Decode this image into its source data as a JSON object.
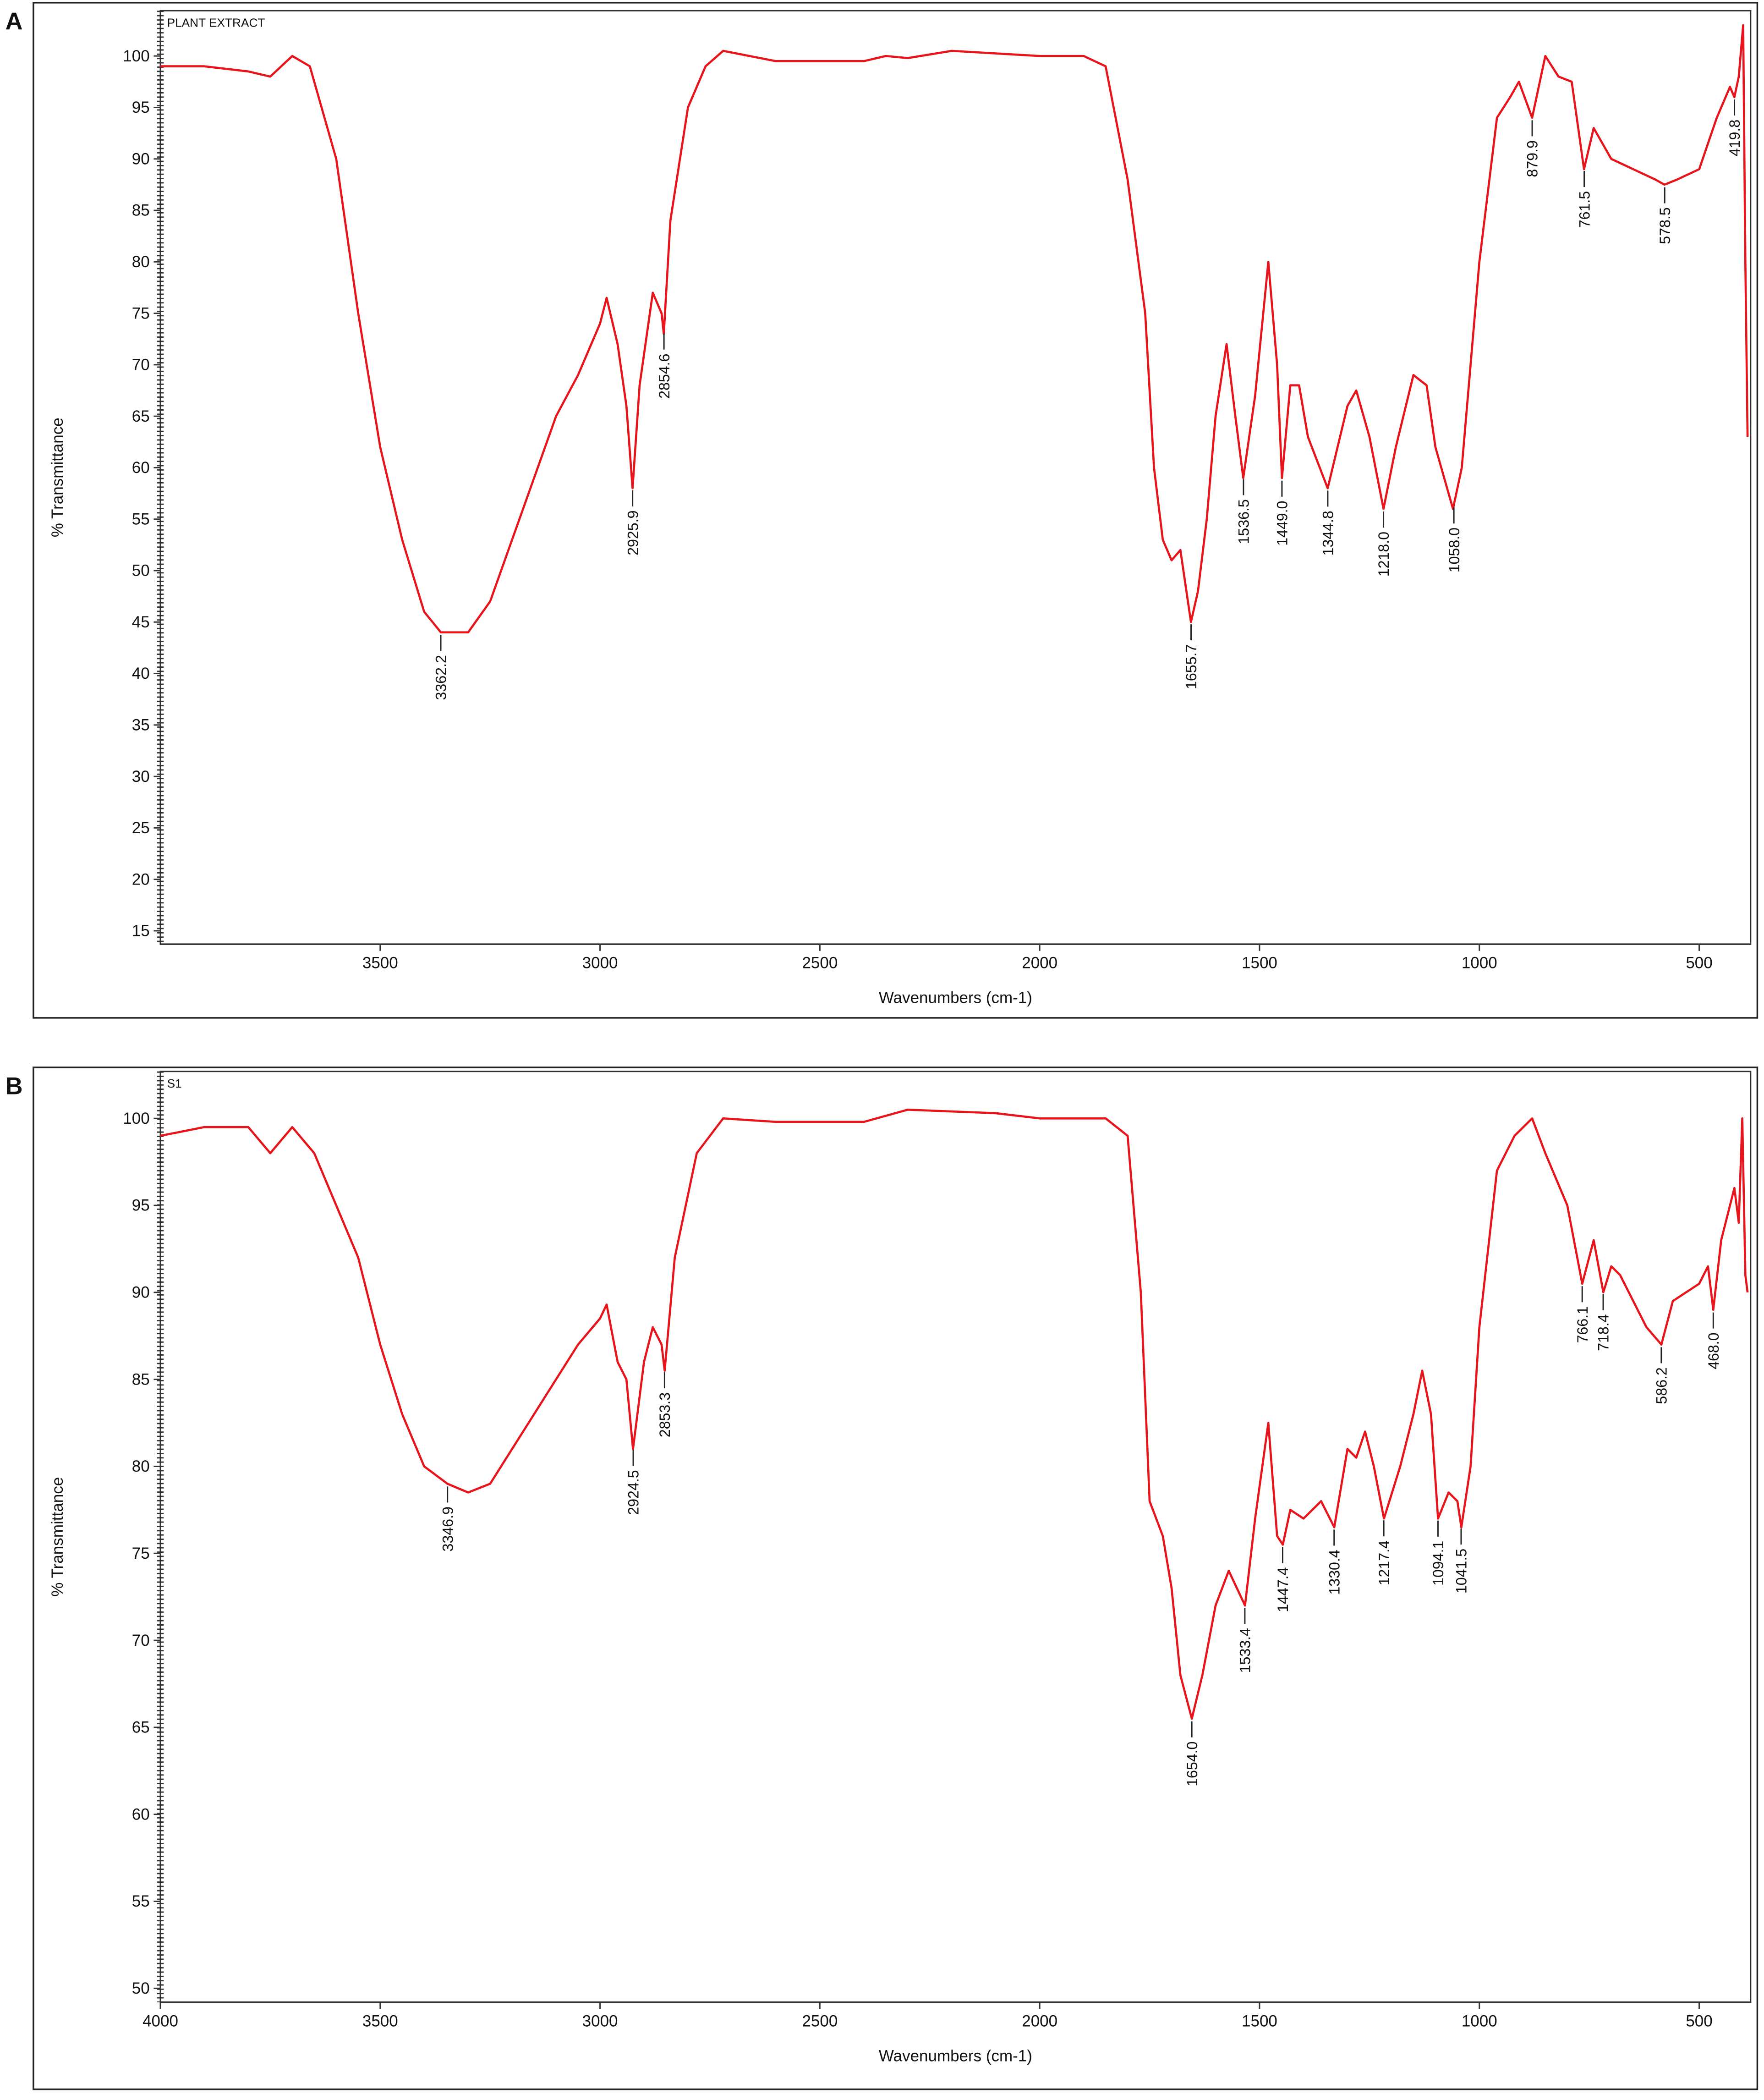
{
  "chart_data": [
    {
      "type": "line",
      "panel": "A",
      "xlabel": "Wavenumbers (cm-1)",
      "ylabel": "% Transmittance",
      "xlim": [
        4000,
        383
      ],
      "ylim": [
        13.7,
        104.4
      ],
      "xticks": [
        3500,
        3000,
        2500,
        2000,
        1500,
        1000,
        500
      ],
      "yticks": [
        15,
        20,
        25,
        30,
        35,
        40,
        45,
        50,
        55,
        60,
        65,
        70,
        75,
        80,
        85,
        90,
        95,
        100
      ],
      "x": [
        4000,
        3900,
        3800,
        3750,
        3700,
        3660,
        3600,
        3550,
        3500,
        3450,
        3400,
        3362,
        3300,
        3250,
        3200,
        3150,
        3100,
        3050,
        3000,
        2985,
        2960,
        2940,
        2926,
        2910,
        2880,
        2860,
        2855,
        2840,
        2800,
        2760,
        2720,
        2600,
        2400,
        2350,
        2300,
        2200,
        2000,
        1900,
        1850,
        1800,
        1760,
        1740,
        1720,
        1700,
        1680,
        1656,
        1640,
        1620,
        1600,
        1575,
        1555,
        1537,
        1510,
        1480,
        1460,
        1449,
        1430,
        1410,
        1390,
        1345,
        1300,
        1280,
        1250,
        1218,
        1190,
        1150,
        1120,
        1100,
        1060,
        1040,
        1000,
        960,
        930,
        910,
        880,
        850,
        820,
        790,
        762,
        740,
        700,
        650,
        600,
        579,
        550,
        500,
        460,
        430,
        420,
        410,
        400,
        395,
        390
      ],
      "series": [
        {
          "name": "PLANT EXTRACT",
          "color": "#e8141b",
          "values": [
            99,
            99,
            98.5,
            98,
            100,
            99,
            90,
            75,
            62,
            53,
            46,
            44,
            44,
            47,
            53,
            59,
            65,
            69,
            74,
            76.5,
            72,
            66,
            58,
            68,
            77,
            75,
            73,
            84,
            95,
            99,
            100.5,
            99.5,
            99.5,
            100,
            99.8,
            100.5,
            100,
            100,
            99,
            88,
            75,
            60,
            53,
            51,
            52,
            45,
            48,
            55,
            65,
            72,
            65,
            59,
            67,
            80,
            70,
            59,
            68,
            68,
            63,
            58,
            66,
            67.5,
            63,
            56,
            62,
            69,
            68,
            62,
            56,
            60,
            80,
            94,
            96,
            97.5,
            94,
            100,
            98,
            97.5,
            89,
            93,
            90,
            89,
            88,
            87.5,
            88,
            89,
            94,
            97,
            96,
            98,
            103,
            80,
            63
          ]
        }
      ],
      "peaks": [
        3362.2,
        2925.9,
        2854.6,
        1655.7,
        1536.5,
        {
          "value": 1449,
          "label": "1449.0"
        },
        1344.8,
        {
          "value": 1218,
          "label": "1218.0"
        },
        {
          "value": 1058,
          "label": "1058.0"
        },
        879.9,
        761.5,
        578.5,
        419.8
      ]
    },
    {
      "type": "line",
      "panel": "B",
      "xlabel": "Wavenumbers (cm-1)",
      "ylabel": "% Transmittance",
      "xlim": [
        4000,
        383
      ],
      "ylim": [
        49.2,
        102.7
      ],
      "xticks": [
        4000,
        3500,
        3000,
        2500,
        2000,
        1500,
        1000,
        500
      ],
      "yticks": [
        50,
        55,
        60,
        65,
        70,
        75,
        80,
        85,
        90,
        95,
        100
      ],
      "x": [
        4000,
        3900,
        3800,
        3750,
        3700,
        3650,
        3600,
        3550,
        3500,
        3450,
        3400,
        3347,
        3300,
        3250,
        3200,
        3150,
        3100,
        3050,
        3000,
        2985,
        2960,
        2940,
        2925,
        2900,
        2880,
        2860,
        2853,
        2830,
        2780,
        2720,
        2600,
        2400,
        2300,
        2100,
        2000,
        1850,
        1800,
        1770,
        1750,
        1720,
        1700,
        1680,
        1654,
        1630,
        1600,
        1570,
        1533,
        1510,
        1480,
        1460,
        1447,
        1430,
        1400,
        1360,
        1330,
        1300,
        1280,
        1260,
        1240,
        1217,
        1180,
        1150,
        1130,
        1110,
        1094,
        1070,
        1050,
        1041,
        1020,
        1000,
        960,
        920,
        880,
        850,
        800,
        766,
        740,
        718,
        700,
        680,
        650,
        620,
        586,
        560,
        500,
        480,
        468,
        450,
        420,
        410,
        402,
        395,
        390
      ],
      "series": [
        {
          "name": "S1",
          "color": "#e8141b",
          "values": [
            99,
            99.5,
            99.5,
            98,
            99.5,
            98,
            95,
            92,
            87,
            83,
            80,
            79,
            78.5,
            79,
            81,
            83,
            85,
            87,
            88.5,
            89.3,
            86,
            85,
            81,
            86,
            88,
            87,
            85.5,
            92,
            98,
            100,
            99.8,
            99.8,
            100.5,
            100.3,
            100,
            100,
            99,
            90,
            78,
            76,
            73,
            68,
            65.5,
            68,
            72,
            74,
            72,
            77,
            82.5,
            76,
            75.5,
            77.5,
            77,
            78,
            76.5,
            81,
            80.5,
            82,
            80,
            77,
            80,
            83,
            85.5,
            83,
            77,
            78.5,
            78,
            76.5,
            80,
            88,
            97,
            99,
            100,
            98,
            95,
            90.5,
            93,
            90,
            91.5,
            91,
            89.5,
            88,
            87,
            89.5,
            90.5,
            91.5,
            89,
            93,
            96,
            94,
            100,
            91,
            90
          ]
        }
      ],
      "peaks": [
        3346.9,
        2924.5,
        2853.3,
        {
          "value": 1654,
          "label": "1654.0"
        },
        1533.4,
        1447.4,
        1330.4,
        1217.4,
        1094.1,
        1041.5,
        766.1,
        718.4,
        586.2,
        {
          "value": 468,
          "label": "468.0"
        }
      ]
    }
  ]
}
